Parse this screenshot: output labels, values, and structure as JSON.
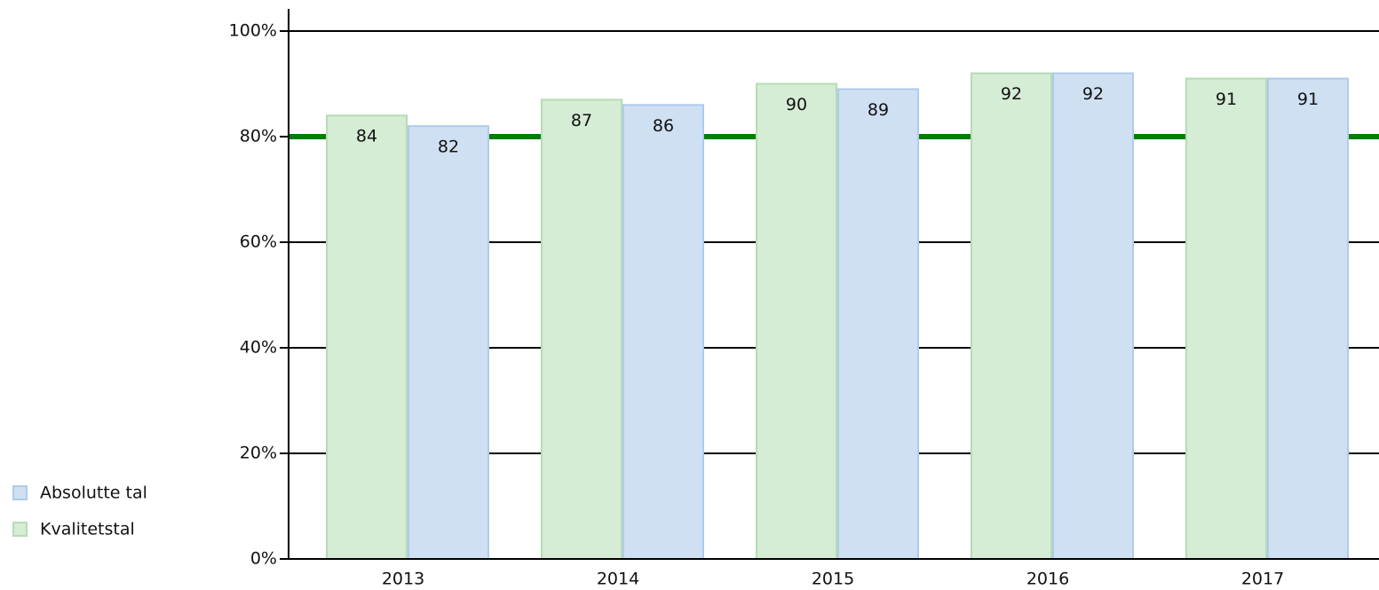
{
  "chart_data": {
    "type": "bar",
    "categories": [
      "2013",
      "2014",
      "2015",
      "2016",
      "2017"
    ],
    "series": [
      {
        "name": "Kvalitetstal",
        "color": "#d5ecd5",
        "values": [
          84,
          87,
          90,
          92,
          91
        ]
      },
      {
        "name": "Absolutte tal",
        "color": "#cfe0f3",
        "values": [
          82,
          86,
          89,
          92,
          91
        ]
      }
    ],
    "ylim": [
      0,
      100
    ],
    "yticks": [
      {
        "value": 0,
        "label": "0%"
      },
      {
        "value": 20,
        "label": "20%"
      },
      {
        "value": 40,
        "label": "40%"
      },
      {
        "value": 60,
        "label": "60%"
      },
      {
        "value": 80,
        "label": "80%"
      },
      {
        "value": 100,
        "label": "100%"
      }
    ],
    "grid": true,
    "reference_line": {
      "value": 80,
      "color": "#008000"
    },
    "legend": "left"
  }
}
